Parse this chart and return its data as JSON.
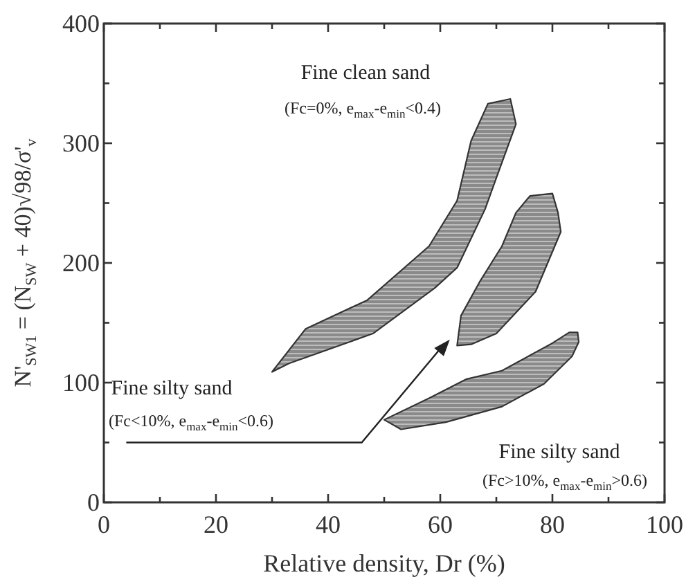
{
  "chart_data": {
    "type": "area",
    "xlabel": "Relative density, Dr (%)",
    "ylabel": "N'$_{SW1}$ = (N$_{SW}$ + 40)√98/σ'$_{v}$",
    "xlim": [
      0,
      100
    ],
    "ylim": [
      0,
      400
    ],
    "xticks": [
      0,
      {
        "value": 10,
        "label": null
      },
      20,
      {
        "value": 30,
        "label": null
      },
      40,
      {
        "value": 50,
        "label": null
      },
      60,
      {
        "value": 70,
        "label": null
      },
      80,
      {
        "value": 90,
        "label": null
      },
      100
    ],
    "yticks": [
      0,
      {
        "value": 50,
        "label": null
      },
      100,
      {
        "value": 150,
        "label": null
      },
      200,
      {
        "value": 250,
        "label": null
      },
      300,
      {
        "value": 350,
        "label": null
      },
      400
    ],
    "grid": false,
    "series": [
      {
        "color": "#333333",
        "x": [
          30,
          36,
          47,
          58,
          63,
          65.5,
          68.5,
          72.5,
          73.5,
          70,
          68,
          63,
          59,
          48,
          33,
          30
        ],
        "values": [
          109,
          145,
          169,
          214,
          252,
          302,
          333,
          337,
          316,
          271,
          245,
          196,
          179,
          141,
          116,
          109
        ]
      },
      {
        "color": "#333333",
        "x": [
          63,
          63.7,
          67,
          71,
          73.5,
          76,
          80,
          81,
          81.5,
          77,
          70,
          65.5,
          63
        ],
        "values": [
          131,
          156,
          184,
          214,
          242,
          256,
          258,
          242,
          226,
          176,
          141,
          132,
          131
        ]
      },
      {
        "color": "#333333",
        "x": [
          50,
          58,
          64.7,
          71,
          80,
          83,
          84.5,
          84.7,
          83.5,
          78.5,
          71,
          61,
          53,
          50
        ],
        "values": [
          69,
          87,
          103,
          110,
          133,
          142,
          142,
          134,
          122,
          99,
          80,
          67,
          61,
          69
        ]
      }
    ],
    "annotations": [
      "Fine clean sand",
      "(Fc=0%, e$_{max}$-e$_{min}$<0.4)",
      "Fine silty sand",
      "(Fc<10%, e$_{max}$-e$_{min}$<0.6)",
      "Fine silty sand",
      "(Fc>10%, e$_{max}$-e$_{min}$>0.6)"
    ]
  }
}
